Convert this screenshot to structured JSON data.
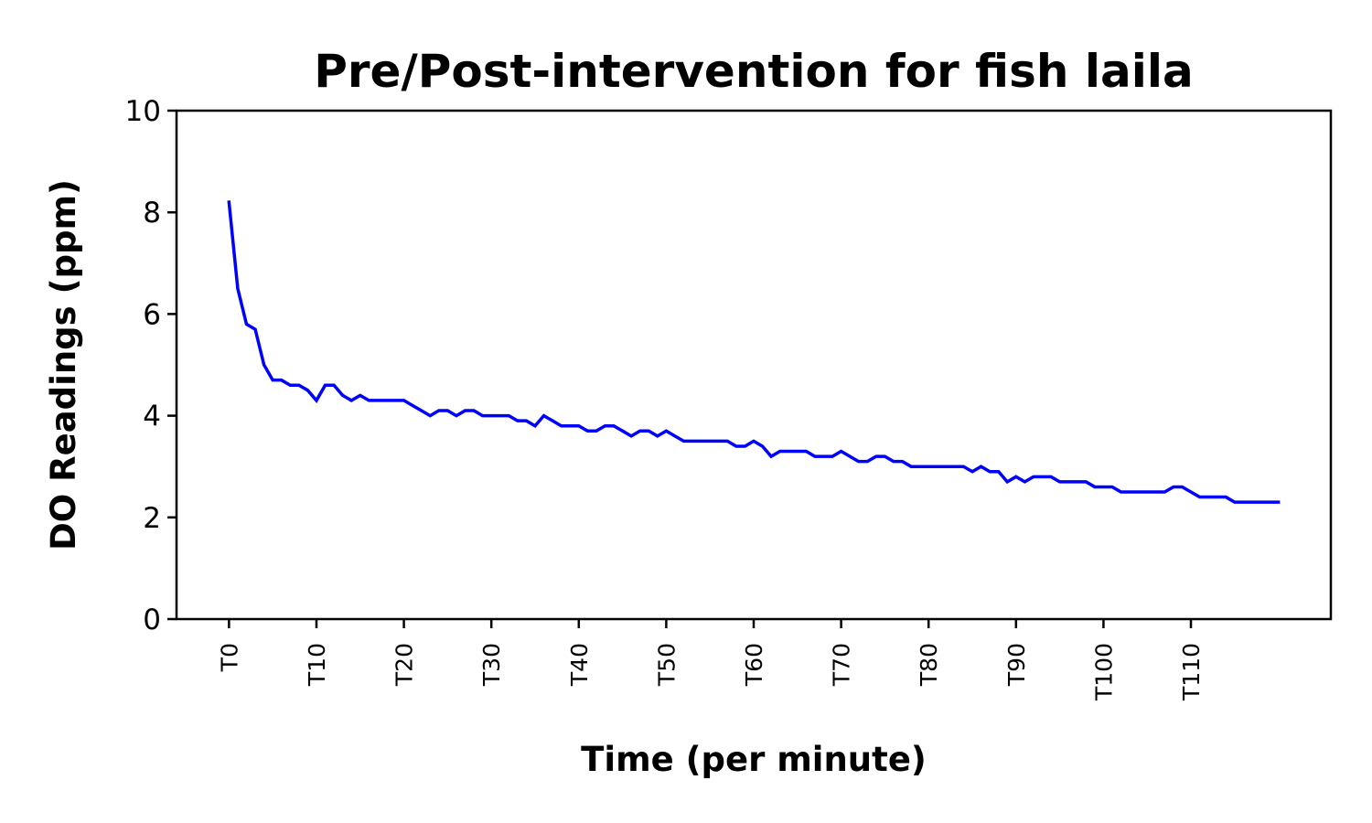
{
  "chart_data": {
    "type": "line",
    "title": "Pre/Post-intervention for fish laila",
    "xlabel": "Time (per minute)",
    "ylabel": "DO Readings (ppm)",
    "ylim": [
      0,
      10
    ],
    "yticks": [
      0,
      2,
      4,
      6,
      8,
      10
    ],
    "xtick_labels": [
      "T0",
      "T10",
      "T20",
      "T30",
      "T40",
      "T50",
      "T60",
      "T70",
      "T80",
      "T90",
      "T100",
      "T110"
    ],
    "xtick_positions": [
      0,
      10,
      20,
      30,
      40,
      50,
      60,
      70,
      80,
      90,
      100,
      110
    ],
    "xlim": [
      -6,
      126
    ],
    "grid": false,
    "series": [
      {
        "color": "#0000ff",
        "x": [
          0,
          1,
          2,
          3,
          4,
          5,
          6,
          7,
          8,
          9,
          10,
          11,
          12,
          13,
          14,
          15,
          16,
          17,
          18,
          19,
          20,
          21,
          22,
          23,
          24,
          25,
          26,
          27,
          28,
          29,
          30,
          31,
          32,
          33,
          34,
          35,
          36,
          37,
          38,
          39,
          40,
          41,
          42,
          43,
          44,
          45,
          46,
          47,
          48,
          49,
          50,
          51,
          52,
          53,
          54,
          55,
          56,
          57,
          58,
          59,
          60,
          61,
          62,
          63,
          64,
          65,
          66,
          67,
          68,
          69,
          70,
          71,
          72,
          73,
          74,
          75,
          76,
          77,
          78,
          79,
          80,
          81,
          82,
          83,
          84,
          85,
          86,
          87,
          88,
          89,
          90,
          91,
          92,
          93,
          94,
          95,
          96,
          97,
          98,
          99,
          100,
          101,
          102,
          103,
          104,
          105,
          106,
          107,
          108,
          109,
          110,
          111,
          112,
          113,
          114,
          115,
          116,
          117,
          118,
          119,
          120
        ],
        "values": [
          8.2,
          6.5,
          5.8,
          5.7,
          5.0,
          4.7,
          4.7,
          4.6,
          4.6,
          4.5,
          4.3,
          4.6,
          4.6,
          4.4,
          4.3,
          4.4,
          4.3,
          4.3,
          4.3,
          4.3,
          4.3,
          4.2,
          4.1,
          4.0,
          4.1,
          4.1,
          4.0,
          4.1,
          4.1,
          4.0,
          4.0,
          4.0,
          4.0,
          3.9,
          3.9,
          3.8,
          4.0,
          3.9,
          3.8,
          3.8,
          3.8,
          3.7,
          3.7,
          3.8,
          3.8,
          3.7,
          3.6,
          3.7,
          3.7,
          3.6,
          3.7,
          3.6,
          3.5,
          3.5,
          3.5,
          3.5,
          3.5,
          3.5,
          3.4,
          3.4,
          3.5,
          3.4,
          3.2,
          3.3,
          3.3,
          3.3,
          3.3,
          3.2,
          3.2,
          3.2,
          3.3,
          3.2,
          3.1,
          3.1,
          3.2,
          3.2,
          3.1,
          3.1,
          3.0,
          3.0,
          3.0,
          3.0,
          3.0,
          3.0,
          3.0,
          2.9,
          3.0,
          2.9,
          2.9,
          2.7,
          2.8,
          2.7,
          2.8,
          2.8,
          2.8,
          2.7,
          2.7,
          2.7,
          2.7,
          2.6,
          2.6,
          2.6,
          2.5,
          2.5,
          2.5,
          2.5,
          2.5,
          2.5,
          2.6,
          2.6,
          2.5,
          2.4,
          2.4,
          2.4,
          2.4,
          2.3,
          2.3,
          2.3,
          2.3,
          2.3,
          2.3
        ]
      }
    ]
  }
}
